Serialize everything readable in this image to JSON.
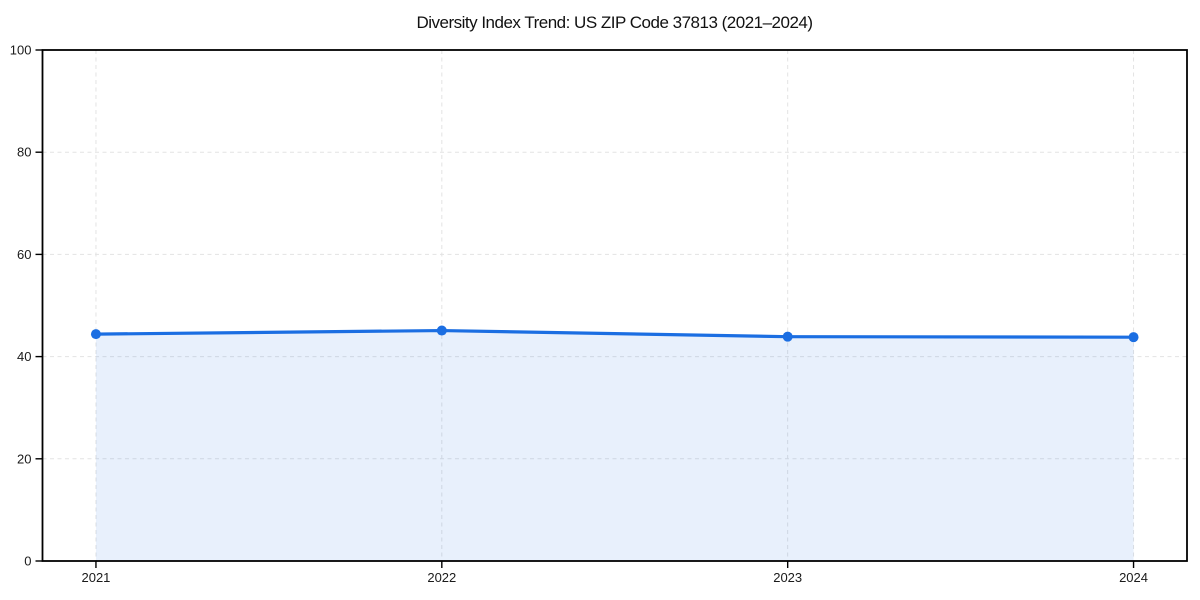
{
  "chart_data": {
    "type": "line",
    "title": "Diversity Index Trend: US ZIP Code 37813 (2021–2024)",
    "categories": [
      "2021",
      "2022",
      "2023",
      "2024"
    ],
    "series": [
      {
        "name": "Diversity Index",
        "values": [
          44.4,
          45.1,
          43.9,
          43.8
        ]
      }
    ],
    "xlabel": "",
    "ylabel": "",
    "ylim": [
      0,
      100
    ],
    "yticks": [
      0,
      20,
      40,
      60,
      80,
      100
    ],
    "grid": true,
    "grid_style": "dashed",
    "legend_position": "none",
    "marker": "circle",
    "area_fill": "to-zero",
    "style": {
      "line_color": "#1b6ee2",
      "marker_color": "#1b6ee2",
      "fill_color": "#1b6ee2",
      "fill_opacity": 0.1,
      "grid_color": "#e3e3e3",
      "axis_color": "#000000",
      "tick_label_color": "#1a1a1a",
      "title_color": "#111111",
      "background": "#ffffff"
    }
  }
}
